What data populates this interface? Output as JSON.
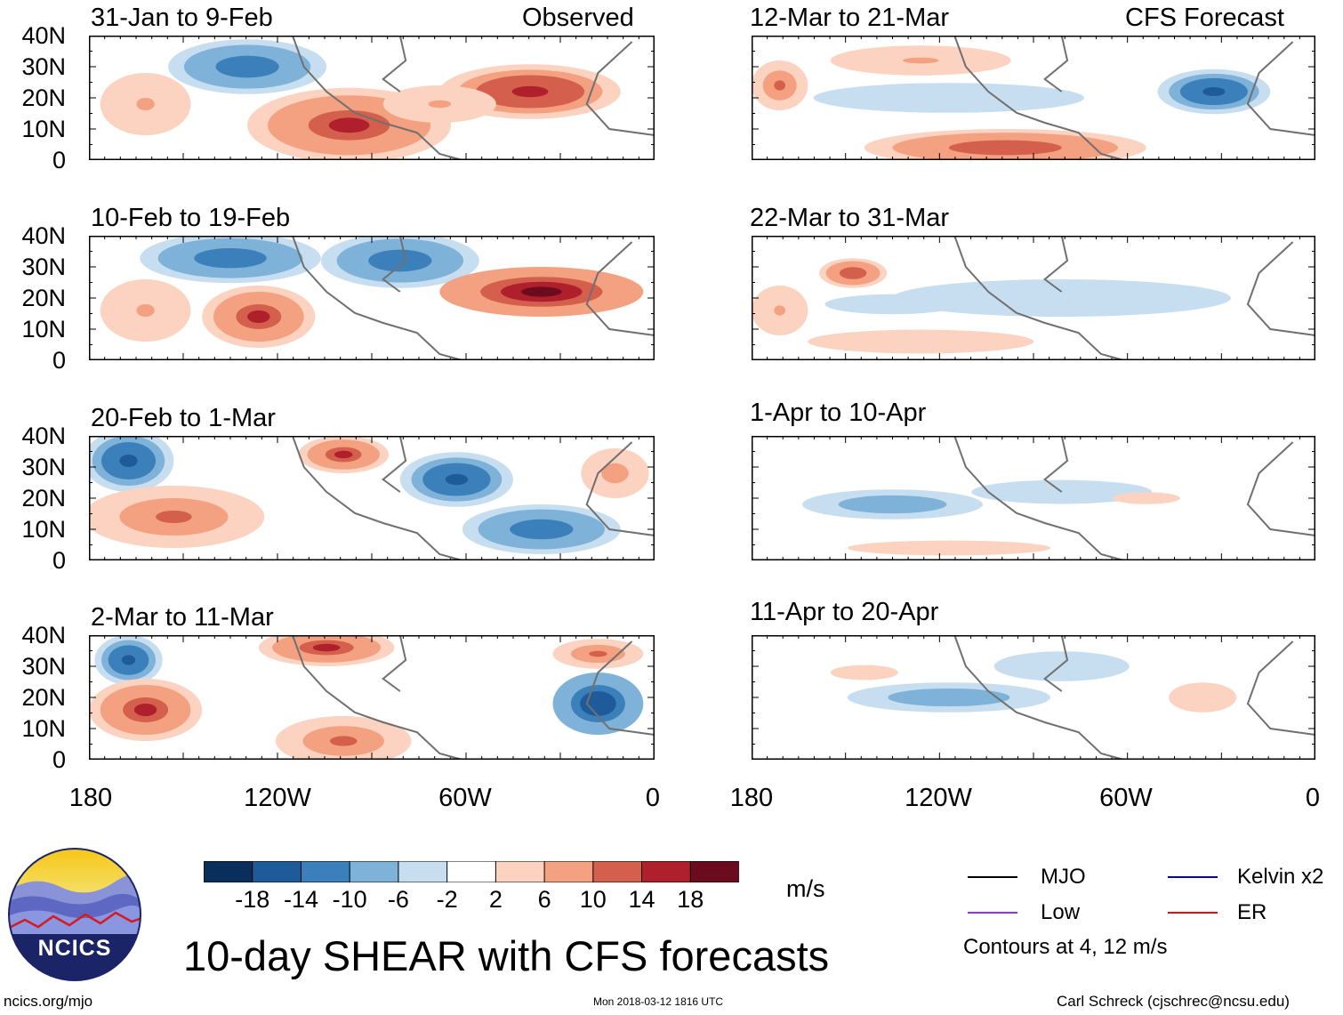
{
  "left_column": {
    "label": "Observed",
    "panels": [
      {
        "title": "31-Jan to 9-Feb"
      },
      {
        "title": "10-Feb to 19-Feb"
      },
      {
        "title": "20-Feb to 1-Mar"
      },
      {
        "title": "2-Mar to 11-Mar"
      }
    ]
  },
  "right_column": {
    "label": "CFS Forecast",
    "panels": [
      {
        "title": "12-Mar to 21-Mar"
      },
      {
        "title": "22-Mar to 31-Mar"
      },
      {
        "title": "1-Apr to 10-Apr"
      },
      {
        "title": "11-Apr to 20-Apr"
      }
    ]
  },
  "y_axis_labels": [
    "40N",
    "30N",
    "20N",
    "10N",
    "0"
  ],
  "x_axis_labels": [
    "180",
    "120W",
    "60W",
    "0"
  ],
  "colorbar": {
    "units": "m/s",
    "tick_labels": [
      "-18",
      "-14",
      "-10",
      "-6",
      "-2",
      "2",
      "6",
      "10",
      "14",
      "18"
    ],
    "colors": [
      "#0b2f5c",
      "#1f5b9b",
      "#3b80bb",
      "#7fb2d8",
      "#c7def0",
      "#ffffff",
      "#fbd3c0",
      "#f3a181",
      "#d45f4c",
      "#b01f2c",
      "#6b0c1e"
    ]
  },
  "legend": {
    "items": [
      {
        "label": "MJO",
        "color": "#000000"
      },
      {
        "label": "Kelvin x2",
        "color": "#0000cc"
      },
      {
        "label": "Low",
        "color": "#9b30e0"
      },
      {
        "label": "ER",
        "color": "#e01010"
      }
    ],
    "note": "Contours at 4, 12 m/s"
  },
  "main_title": "10-day SHEAR with CFS forecasts",
  "logo": {
    "text": "NCICS"
  },
  "footer": {
    "left": "ncics.org/mjo",
    "center": "Mon 2018-03-12 1816 UTC",
    "right": "Carl Schreck (cjschrec@ncsu.edu)"
  },
  "panel_fields": [
    {
      "blobs": [
        [
          0.28,
          0.25,
          0.14,
          0.22,
          -12
        ],
        [
          0.46,
          0.72,
          0.18,
          0.3,
          14
        ],
        [
          0.78,
          0.45,
          0.16,
          0.22,
          16
        ],
        [
          0.1,
          0.55,
          0.08,
          0.25,
          6
        ],
        [
          0.62,
          0.55,
          0.1,
          0.15,
          6
        ]
      ]
    },
    {
      "blobs": [
        [
          0.25,
          0.18,
          0.16,
          0.2,
          -12
        ],
        [
          0.55,
          0.2,
          0.14,
          0.22,
          -14
        ],
        [
          0.3,
          0.65,
          0.1,
          0.25,
          14
        ],
        [
          0.8,
          0.45,
          0.18,
          0.2,
          18
        ],
        [
          0.1,
          0.6,
          0.08,
          0.25,
          6
        ]
      ]
    },
    {
      "blobs": [
        [
          0.07,
          0.2,
          0.08,
          0.25,
          -16
        ],
        [
          0.65,
          0.35,
          0.1,
          0.22,
          -16
        ],
        [
          0.8,
          0.75,
          0.14,
          0.2,
          -12
        ],
        [
          0.15,
          0.65,
          0.16,
          0.25,
          10
        ],
        [
          0.45,
          0.15,
          0.08,
          0.15,
          14
        ],
        [
          0.93,
          0.3,
          0.06,
          0.2,
          8
        ]
      ]
    },
    {
      "blobs": [
        [
          0.07,
          0.2,
          0.06,
          0.2,
          -16
        ],
        [
          0.9,
          0.55,
          0.08,
          0.25,
          -18
        ],
        [
          0.1,
          0.6,
          0.1,
          0.25,
          14
        ],
        [
          0.42,
          0.1,
          0.12,
          0.15,
          14
        ],
        [
          0.45,
          0.85,
          0.12,
          0.2,
          10
        ],
        [
          0.9,
          0.15,
          0.08,
          0.12,
          10
        ]
      ]
    },
    {
      "blobs": [
        [
          0.35,
          0.5,
          0.3,
          0.15,
          -4
        ],
        [
          0.82,
          0.45,
          0.1,
          0.18,
          -16
        ],
        [
          0.45,
          0.9,
          0.25,
          0.15,
          12
        ],
        [
          0.3,
          0.2,
          0.16,
          0.12,
          6
        ],
        [
          0.05,
          0.4,
          0.05,
          0.2,
          10
        ]
      ]
    },
    {
      "blobs": [
        [
          0.18,
          0.3,
          0.06,
          0.12,
          12
        ],
        [
          0.55,
          0.5,
          0.3,
          0.15,
          -6
        ],
        [
          0.25,
          0.55,
          0.15,
          0.1,
          -4
        ],
        [
          0.3,
          0.85,
          0.25,
          0.12,
          4
        ],
        [
          0.05,
          0.6,
          0.05,
          0.2,
          6
        ]
      ]
    },
    {
      "blobs": [
        [
          0.25,
          0.55,
          0.16,
          0.12,
          -10
        ],
        [
          0.55,
          0.45,
          0.2,
          0.12,
          -4
        ],
        [
          0.35,
          0.9,
          0.3,
          0.1,
          3
        ],
        [
          0.7,
          0.5,
          0.1,
          0.08,
          3
        ]
      ]
    },
    {
      "blobs": [
        [
          0.35,
          0.5,
          0.18,
          0.12,
          -10
        ],
        [
          0.55,
          0.25,
          0.15,
          0.15,
          -4
        ],
        [
          0.8,
          0.5,
          0.1,
          0.2,
          3
        ],
        [
          0.2,
          0.3,
          0.1,
          0.1,
          3
        ]
      ]
    }
  ]
}
